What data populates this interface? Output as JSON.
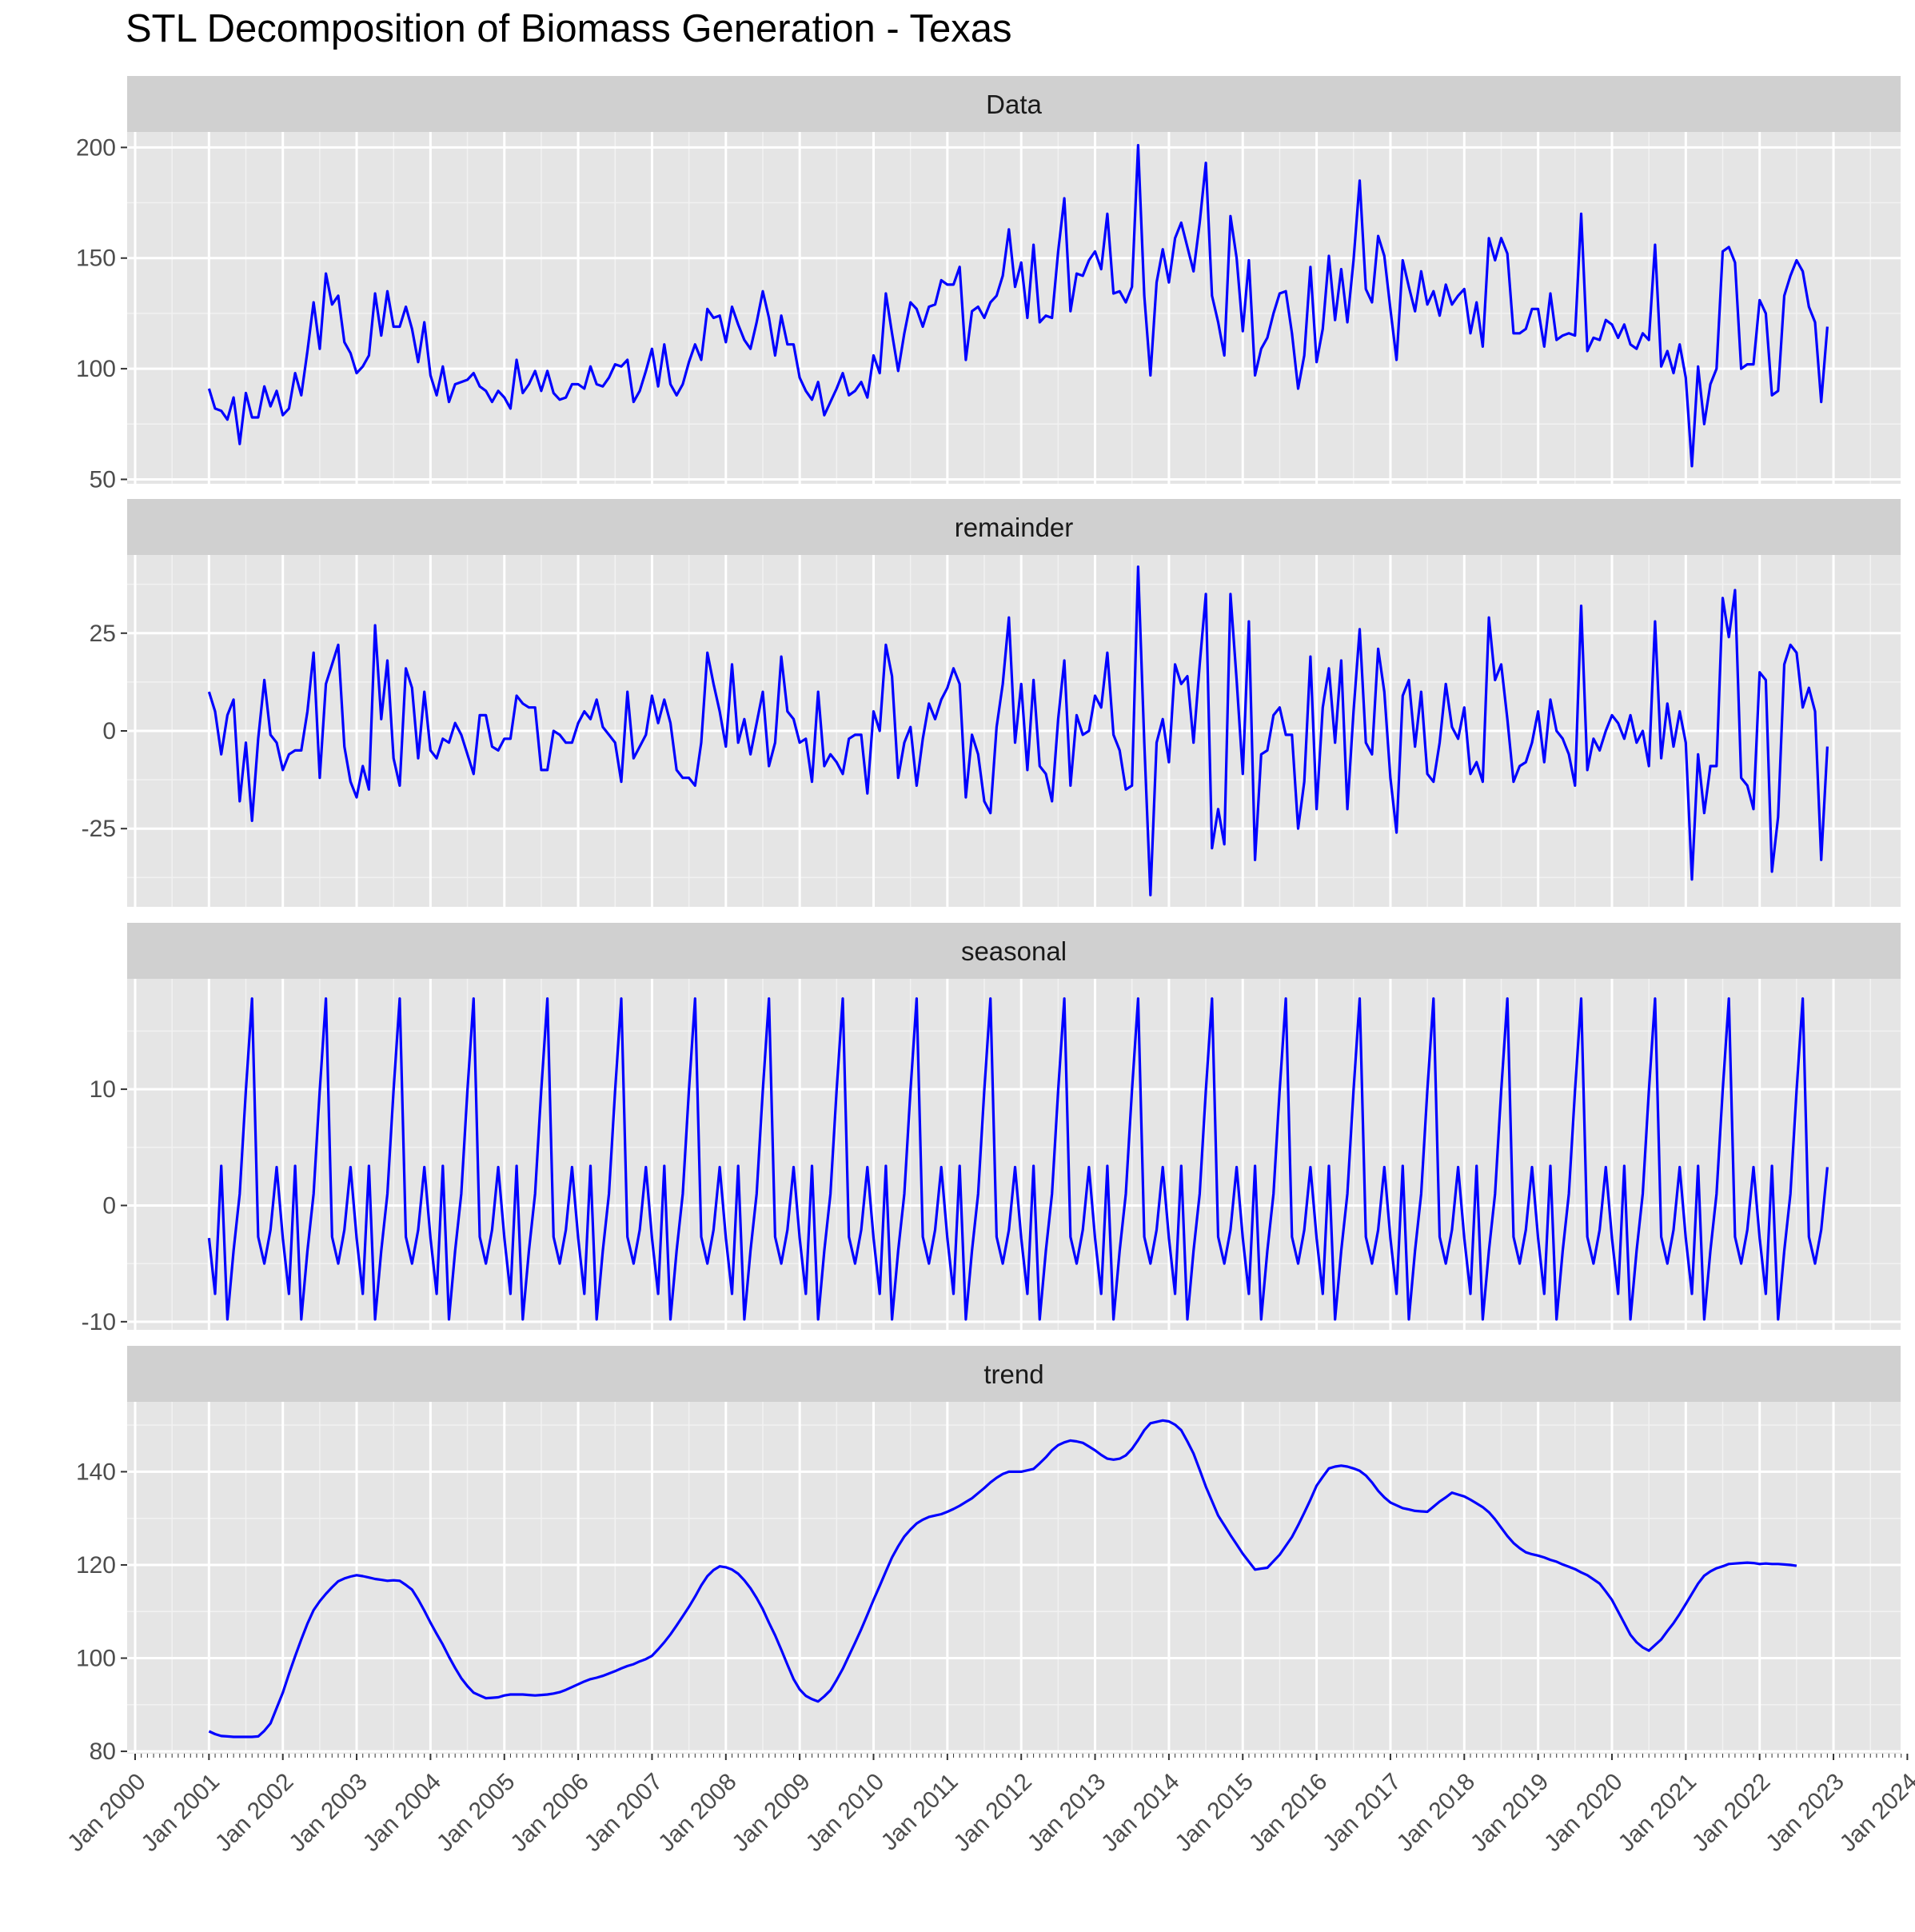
{
  "chart_data": {
    "type": "line",
    "title": "STL Decomposition of Biomass Generation - Texas",
    "xlabel": "",
    "ylabel": "",
    "line_color": "#0000ff",
    "panel_background": "#e5e5e5",
    "strip_background": "#d0d0d0",
    "grid": true,
    "x_start": "Jan 2001",
    "x_frequency": "monthly",
    "xlim": [
      "Jan 2000",
      "Jan 2024"
    ],
    "x_tick_labels": [
      "Jan 2000",
      "Jan 2001",
      "Jan 2002",
      "Jan 2003",
      "Jan 2004",
      "Jan 2005",
      "Jan 2006",
      "Jan 2007",
      "Jan 2008",
      "Jan 2009",
      "Jan 2010",
      "Jan 2011",
      "Jan 2012",
      "Jan 2013",
      "Jan 2014",
      "Jan 2015",
      "Jan 2016",
      "Jan 2017",
      "Jan 2018",
      "Jan 2019",
      "Jan 2020",
      "Jan 2021",
      "Jan 2022",
      "Jan 2023",
      "Jan 2024"
    ],
    "panels": [
      {
        "name": "Data",
        "ylim": [
          48,
          207
        ],
        "yticks": [
          50,
          100,
          150,
          200
        ],
        "values": [
          91,
          82,
          81,
          77,
          87,
          66,
          89,
          78,
          78,
          92,
          83,
          90,
          79,
          82,
          98,
          88,
          108,
          130,
          109,
          143,
          129,
          133,
          112,
          107,
          98,
          101,
          106,
          134,
          115,
          135,
          119,
          119,
          128,
          118,
          103,
          121,
          97,
          88,
          101,
          85,
          93,
          94,
          95,
          98,
          92,
          90,
          85,
          90,
          87,
          82,
          104,
          89,
          93,
          99,
          90,
          99,
          89,
          86,
          87,
          93,
          93,
          91,
          101,
          93,
          92,
          96,
          102,
          101,
          104,
          85,
          90,
          99,
          109,
          92,
          111,
          93,
          88,
          93,
          103,
          111,
          104,
          127,
          123,
          124,
          112,
          128,
          120,
          113,
          109,
          121,
          135,
          123,
          106,
          124,
          111,
          111,
          96,
          90,
          86,
          94,
          79,
          85,
          91,
          98,
          88,
          90,
          94,
          87,
          106,
          98,
          134,
          116,
          99,
          116,
          130,
          127,
          119,
          128,
          129,
          140,
          138,
          138,
          146,
          104,
          126,
          128,
          123,
          130,
          133,
          142,
          163,
          137,
          148,
          123,
          156,
          121,
          124,
          123,
          153,
          177,
          126,
          143,
          142,
          149,
          153,
          145,
          170,
          134,
          135,
          130,
          137,
          201,
          133,
          97,
          139,
          154,
          139,
          159,
          166,
          155,
          144,
          166,
          193,
          133,
          121,
          106,
          169,
          150,
          117,
          149,
          97,
          109,
          114,
          125,
          134,
          135,
          116,
          91,
          106,
          146,
          103,
          118,
          151,
          122,
          145,
          121,
          149,
          185,
          136,
          130,
          160,
          151,
          127,
          104,
          149,
          137,
          126,
          144,
          129,
          135,
          124,
          138,
          129,
          133,
          136,
          116,
          130,
          110,
          159,
          149,
          159,
          152,
          116,
          116,
          118,
          127,
          127,
          110,
          134,
          113,
          115,
          116,
          115,
          170,
          108,
          114,
          113,
          122,
          120,
          114,
          120,
          111,
          109,
          116,
          113,
          156,
          101,
          108,
          98,
          111,
          96,
          56,
          101,
          75,
          93,
          100,
          153,
          155,
          148,
          100,
          102,
          102,
          131,
          125,
          88,
          90,
          133,
          142,
          149,
          144,
          128,
          121,
          85,
          119
        ]
      },
      {
        "name": "remainder",
        "ylim": [
          -45,
          45
        ],
        "yticks": [
          -25,
          0,
          25
        ],
        "values": [
          10,
          5,
          -6,
          4,
          8,
          -18,
          -3,
          -23,
          -2,
          13,
          -1,
          -3,
          -10,
          -6,
          -5,
          -5,
          5,
          20,
          -12,
          12,
          17,
          22,
          -4,
          -13,
          -17,
          -9,
          -15,
          27,
          3,
          18,
          -7,
          -14,
          16,
          11,
          -7,
          10,
          -5,
          -7,
          -2,
          -3,
          2,
          -1,
          -6,
          -11,
          4,
          4,
          -4,
          -5,
          -2,
          -2,
          9,
          7,
          6,
          6,
          -10,
          -10,
          0,
          -1,
          -3,
          -3,
          2,
          5,
          3,
          8,
          1,
          -1,
          -3,
          -13,
          10,
          -7,
          -4,
          -1,
          9,
          2,
          8,
          2,
          -10,
          -12,
          -12,
          -14,
          -3,
          20,
          12,
          5,
          -4,
          17,
          -3,
          3,
          -6,
          2,
          10,
          -9,
          -3,
          19,
          5,
          3,
          -3,
          -2,
          -13,
          10,
          -9,
          -6,
          -8,
          -11,
          -2,
          -1,
          -1,
          -16,
          5,
          0,
          22,
          14,
          -12,
          -3,
          1,
          -14,
          -2,
          7,
          3,
          8,
          11,
          16,
          12,
          -17,
          -1,
          -6,
          -18,
          -21,
          1,
          12,
          29,
          -3,
          12,
          -10,
          13,
          -9,
          -11,
          -18,
          3,
          18,
          -14,
          4,
          -1,
          0,
          9,
          6,
          20,
          -1,
          -5,
          -15,
          -14,
          42,
          -3,
          -42,
          -3,
          3,
          -8,
          17,
          12,
          14,
          -3,
          17,
          35,
          -30,
          -20,
          -29,
          35,
          13,
          -11,
          28,
          -33,
          -6,
          -5,
          4,
          6,
          -1,
          -1,
          -25,
          -13,
          19,
          -20,
          6,
          16,
          -3,
          18,
          -20,
          5,
          26,
          -3,
          -6,
          21,
          10,
          -12,
          -26,
          9,
          13,
          -4,
          10,
          -11,
          -13,
          -3,
          12,
          1,
          -2,
          6,
          -11,
          -8,
          -13,
          29,
          13,
          17,
          3,
          -13,
          -9,
          -8,
          -3,
          5,
          -8,
          8,
          0,
          -2,
          -6,
          -14,
          32,
          -10,
          -2,
          -5,
          0,
          4,
          2,
          -2,
          4,
          -3,
          0,
          -9,
          28,
          -7,
          7,
          -4,
          5,
          -3,
          -38,
          -6,
          -21,
          -9,
          -9,
          34,
          24,
          36,
          -12,
          -14,
          -20,
          15,
          13,
          -36,
          -22,
          17,
          22,
          20,
          6,
          11,
          5,
          -33,
          -4
        ]
      },
      {
        "name": "seasonal",
        "ylim": [
          -10.7,
          19.5
        ],
        "yticks": [
          -10,
          0,
          10
        ],
        "values": [
          -2.8,
          -7.6,
          3.4,
          -9.8,
          -3.9,
          1.0,
          9.9,
          17.8,
          -2.7,
          -5.0,
          -2.1,
          3.3
        ]
      },
      {
        "name": "trend",
        "ylim": [
          79.5,
          155
        ],
        "yticks": [
          80,
          100,
          120,
          140
        ],
        "values": [
          84.3,
          83.7,
          83.3,
          83.2,
          83.1,
          83.1,
          83.1,
          83.1,
          83.2,
          84.4,
          86.0,
          89.3,
          92.6,
          96.6,
          100.4,
          104.0,
          107.4,
          110.3,
          112.2,
          113.8,
          115.2,
          116.5,
          117.1,
          117.5,
          117.8,
          117.6,
          117.3,
          117.0,
          116.8,
          116.6,
          116.7,
          116.6,
          115.7,
          114.7,
          112.6,
          110.2,
          107.6,
          105.2,
          102.9,
          100.3,
          97.9,
          95.7,
          94.0,
          92.6,
          92.0,
          91.4,
          91.5,
          91.6,
          92.0,
          92.2,
          92.2,
          92.2,
          92.1,
          92.0,
          92.1,
          92.2,
          92.4,
          92.7,
          93.2,
          93.8,
          94.4,
          95.0,
          95.5,
          95.8,
          96.2,
          96.7,
          97.2,
          97.8,
          98.3,
          98.7,
          99.3,
          99.8,
          100.5,
          101.9,
          103.4,
          105.1,
          107.0,
          109.0,
          111.0,
          113.2,
          115.6,
          117.6,
          118.9,
          119.7,
          119.5,
          119.0,
          118.1,
          116.7,
          115.0,
          112.9,
          110.5,
          107.6,
          104.9,
          101.8,
          98.6,
          95.5,
          93.3,
          91.9,
          91.2,
          90.7,
          91.8,
          93.1,
          95.3,
          97.7,
          100.5,
          103.3,
          106.2,
          109.3,
          112.5,
          115.5,
          118.6,
          121.6,
          124.0,
          126.1,
          127.6,
          128.9,
          129.7,
          130.3,
          130.6,
          130.9,
          131.4,
          132.0,
          132.7,
          133.5,
          134.3,
          135.4,
          136.5,
          137.7,
          138.7,
          139.5,
          140.0,
          140.0,
          140.0,
          140.3,
          140.6,
          141.8,
          143.1,
          144.6,
          145.7,
          146.3,
          146.7,
          146.5,
          146.2,
          145.4,
          144.6,
          143.6,
          142.8,
          142.6,
          142.8,
          143.5,
          144.9,
          146.8,
          148.9,
          150.4,
          150.7,
          151.0,
          150.8,
          150.1,
          148.9,
          146.5,
          143.9,
          140.4,
          136.8,
          133.7,
          130.6,
          128.5,
          126.4,
          124.4,
          122.4,
          120.7,
          119.0,
          119.2,
          119.4,
          120.8,
          122.2,
          124.1,
          126.0,
          128.5,
          131.2,
          134.0,
          137.0,
          138.9,
          140.7,
          141.1,
          141.3,
          141.1,
          140.7,
          140.2,
          139.2,
          137.7,
          135.9,
          134.5,
          133.4,
          132.8,
          132.2,
          131.9,
          131.6,
          131.5,
          131.4,
          132.5,
          133.6,
          134.5,
          135.5,
          135.1,
          134.7,
          134.0,
          133.2,
          132.4,
          131.3,
          129.8,
          128.0,
          126.2,
          124.7,
          123.6,
          122.7,
          122.3,
          122.0,
          121.6,
          121.1,
          120.7,
          120.1,
          119.6,
          119.1,
          118.4,
          117.8,
          116.9,
          116.0,
          114.3,
          112.5,
          110.0,
          107.5,
          105.0,
          103.4,
          102.3,
          101.6,
          102.8,
          104.0,
          105.8,
          107.5,
          109.5,
          111.6,
          113.8,
          116.0,
          117.7,
          118.6,
          119.3,
          119.7,
          120.2,
          120.3,
          120.4,
          120.5,
          120.4,
          120.2,
          120.3,
          120.2,
          120.2,
          120.1,
          120.0,
          119.8
        ]
      }
    ]
  }
}
